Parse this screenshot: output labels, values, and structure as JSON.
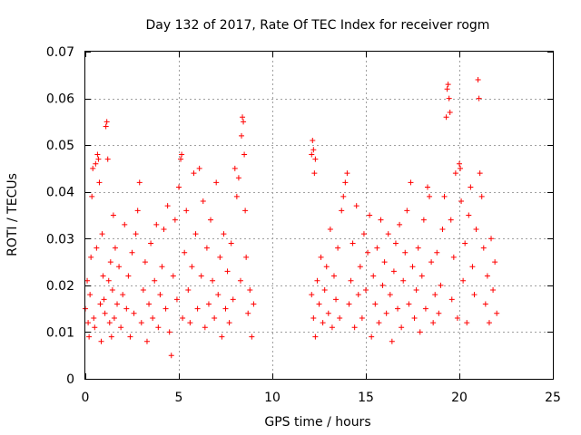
{
  "chart_data": {
    "type": "scatter",
    "title": "Day 132 of 2017, Rate Of TEC Index for receiver rogm",
    "xlabel": "GPS time / hours",
    "ylabel": "ROTI / TECUs",
    "xlim": [
      0,
      25
    ],
    "ylim": [
      0,
      0.07
    ],
    "xticks": [
      0,
      5,
      10,
      15,
      20,
      25
    ],
    "yticks": [
      0,
      0.01,
      0.02,
      0.03,
      0.04,
      0.05,
      0.06,
      0.07
    ],
    "xtick_labels": [
      "0",
      "5",
      "10",
      "15",
      "20",
      "25"
    ],
    "ytick_labels": [
      "0",
      "0.01",
      "0.02",
      "0.03",
      "0.04",
      "0.05",
      "0.06",
      "0.07"
    ],
    "grid": true,
    "marker": "+",
    "color": "#ff0000",
    "series": [
      {
        "points": [
          [
            0.0,
            0.015
          ],
          [
            0.1,
            0.021
          ],
          [
            0.15,
            0.012
          ],
          [
            0.2,
            0.009
          ],
          [
            0.25,
            0.018
          ],
          [
            0.3,
            0.026
          ],
          [
            0.35,
            0.039
          ],
          [
            0.4,
            0.045
          ],
          [
            0.45,
            0.013
          ],
          [
            0.5,
            0.011
          ],
          [
            0.55,
            0.046
          ],
          [
            0.6,
            0.028
          ],
          [
            0.65,
            0.048
          ],
          [
            0.7,
            0.047
          ],
          [
            0.75,
            0.042
          ],
          [
            0.8,
            0.016
          ],
          [
            0.85,
            0.008
          ],
          [
            0.9,
            0.031
          ],
          [
            0.95,
            0.022
          ],
          [
            1.0,
            0.017
          ],
          [
            1.05,
            0.014
          ],
          [
            1.1,
            0.054
          ],
          [
            1.15,
            0.055
          ],
          [
            1.2,
            0.047
          ],
          [
            1.25,
            0.021
          ],
          [
            1.3,
            0.012
          ],
          [
            1.35,
            0.025
          ],
          [
            1.4,
            0.009
          ],
          [
            1.45,
            0.019
          ],
          [
            1.5,
            0.035
          ],
          [
            1.55,
            0.013
          ],
          [
            1.6,
            0.028
          ],
          [
            1.7,
            0.016
          ],
          [
            1.8,
            0.024
          ],
          [
            1.9,
            0.011
          ],
          [
            2.0,
            0.018
          ],
          [
            2.1,
            0.033
          ],
          [
            2.2,
            0.015
          ],
          [
            2.3,
            0.022
          ],
          [
            2.4,
            0.009
          ],
          [
            2.5,
            0.027
          ],
          [
            2.6,
            0.014
          ],
          [
            2.7,
            0.031
          ],
          [
            2.8,
            0.036
          ],
          [
            2.9,
            0.042
          ],
          [
            3.0,
            0.012
          ],
          [
            3.1,
            0.019
          ],
          [
            3.2,
            0.025
          ],
          [
            3.3,
            0.008
          ],
          [
            3.4,
            0.016
          ],
          [
            3.5,
            0.029
          ],
          [
            3.6,
            0.013
          ],
          [
            3.7,
            0.021
          ],
          [
            3.8,
            0.033
          ],
          [
            3.9,
            0.011
          ],
          [
            4.0,
            0.018
          ],
          [
            4.1,
            0.024
          ],
          [
            4.2,
            0.032
          ],
          [
            4.3,
            0.015
          ],
          [
            4.4,
            0.037
          ],
          [
            4.5,
            0.01
          ],
          [
            4.6,
            0.005
          ],
          [
            4.7,
            0.022
          ],
          [
            4.8,
            0.034
          ],
          [
            4.9,
            0.017
          ],
          [
            5.0,
            0.041
          ],
          [
            5.1,
            0.047
          ],
          [
            5.15,
            0.048
          ],
          [
            5.2,
            0.013
          ],
          [
            5.3,
            0.027
          ],
          [
            5.4,
            0.036
          ],
          [
            5.5,
            0.019
          ],
          [
            5.6,
            0.012
          ],
          [
            5.7,
            0.024
          ],
          [
            5.8,
            0.044
          ],
          [
            5.9,
            0.031
          ],
          [
            6.0,
            0.015
          ],
          [
            6.1,
            0.045
          ],
          [
            6.2,
            0.022
          ],
          [
            6.3,
            0.038
          ],
          [
            6.4,
            0.011
          ],
          [
            6.5,
            0.028
          ],
          [
            6.6,
            0.016
          ],
          [
            6.7,
            0.034
          ],
          [
            6.8,
            0.021
          ],
          [
            6.9,
            0.013
          ],
          [
            7.0,
            0.042
          ],
          [
            7.1,
            0.018
          ],
          [
            7.2,
            0.026
          ],
          [
            7.3,
            0.009
          ],
          [
            7.4,
            0.031
          ],
          [
            7.5,
            0.015
          ],
          [
            7.6,
            0.023
          ],
          [
            7.7,
            0.012
          ],
          [
            7.8,
            0.029
          ],
          [
            7.9,
            0.017
          ],
          [
            8.0,
            0.045
          ],
          [
            8.1,
            0.039
          ],
          [
            8.2,
            0.043
          ],
          [
            8.3,
            0.021
          ],
          [
            8.35,
            0.052
          ],
          [
            8.4,
            0.056
          ],
          [
            8.45,
            0.055
          ],
          [
            8.5,
            0.048
          ],
          [
            8.55,
            0.036
          ],
          [
            8.6,
            0.026
          ],
          [
            8.7,
            0.014
          ],
          [
            8.8,
            0.019
          ],
          [
            8.9,
            0.009
          ],
          [
            9.0,
            0.016
          ],
          [
            12.1,
            0.048
          ],
          [
            12.15,
            0.051
          ],
          [
            12.2,
            0.049
          ],
          [
            12.25,
            0.044
          ],
          [
            12.3,
            0.047
          ],
          [
            12.1,
            0.018
          ],
          [
            12.2,
            0.013
          ],
          [
            12.3,
            0.009
          ],
          [
            12.4,
            0.021
          ],
          [
            12.5,
            0.016
          ],
          [
            12.6,
            0.026
          ],
          [
            12.7,
            0.012
          ],
          [
            12.8,
            0.019
          ],
          [
            12.9,
            0.024
          ],
          [
            13.0,
            0.014
          ],
          [
            13.1,
            0.032
          ],
          [
            13.2,
            0.011
          ],
          [
            13.3,
            0.022
          ],
          [
            13.4,
            0.017
          ],
          [
            13.5,
            0.028
          ],
          [
            13.6,
            0.013
          ],
          [
            13.7,
            0.036
          ],
          [
            13.8,
            0.039
          ],
          [
            13.9,
            0.042
          ],
          [
            14.0,
            0.044
          ],
          [
            14.1,
            0.016
          ],
          [
            14.2,
            0.021
          ],
          [
            14.3,
            0.029
          ],
          [
            14.4,
            0.011
          ],
          [
            14.5,
            0.037
          ],
          [
            14.6,
            0.018
          ],
          [
            14.7,
            0.024
          ],
          [
            14.8,
            0.013
          ],
          [
            14.9,
            0.031
          ],
          [
            15.0,
            0.019
          ],
          [
            15.1,
            0.027
          ],
          [
            15.2,
            0.035
          ],
          [
            15.3,
            0.009
          ],
          [
            15.4,
            0.022
          ],
          [
            15.5,
            0.016
          ],
          [
            15.6,
            0.028
          ],
          [
            15.7,
            0.012
          ],
          [
            15.8,
            0.034
          ],
          [
            15.9,
            0.02
          ],
          [
            16.0,
            0.025
          ],
          [
            16.1,
            0.014
          ],
          [
            16.2,
            0.031
          ],
          [
            16.3,
            0.018
          ],
          [
            16.4,
            0.008
          ],
          [
            16.5,
            0.023
          ],
          [
            16.6,
            0.029
          ],
          [
            16.7,
            0.015
          ],
          [
            16.8,
            0.033
          ],
          [
            16.9,
            0.011
          ],
          [
            17.0,
            0.021
          ],
          [
            17.1,
            0.027
          ],
          [
            17.2,
            0.036
          ],
          [
            17.3,
            0.016
          ],
          [
            17.4,
            0.042
          ],
          [
            17.5,
            0.024
          ],
          [
            17.6,
            0.013
          ],
          [
            17.7,
            0.019
          ],
          [
            17.8,
            0.028
          ],
          [
            17.9,
            0.01
          ],
          [
            18.0,
            0.022
          ],
          [
            18.1,
            0.034
          ],
          [
            18.2,
            0.015
          ],
          [
            18.3,
            0.041
          ],
          [
            18.4,
            0.039
          ],
          [
            18.5,
            0.025
          ],
          [
            18.6,
            0.012
          ],
          [
            18.7,
            0.018
          ],
          [
            18.8,
            0.027
          ],
          [
            18.9,
            0.014
          ],
          [
            19.0,
            0.02
          ],
          [
            19.1,
            0.032
          ],
          [
            19.2,
            0.039
          ],
          [
            19.3,
            0.056
          ],
          [
            19.35,
            0.062
          ],
          [
            19.4,
            0.063
          ],
          [
            19.45,
            0.06
          ],
          [
            19.5,
            0.057
          ],
          [
            19.55,
            0.034
          ],
          [
            19.6,
            0.017
          ],
          [
            19.7,
            0.026
          ],
          [
            19.8,
            0.044
          ],
          [
            19.9,
            0.013
          ],
          [
            20.0,
            0.046
          ],
          [
            20.05,
            0.045
          ],
          [
            20.1,
            0.038
          ],
          [
            20.2,
            0.021
          ],
          [
            20.3,
            0.029
          ],
          [
            20.4,
            0.012
          ],
          [
            20.5,
            0.035
          ],
          [
            20.6,
            0.041
          ],
          [
            20.7,
            0.024
          ],
          [
            20.8,
            0.018
          ],
          [
            20.9,
            0.032
          ],
          [
            21.0,
            0.064
          ],
          [
            21.05,
            0.06
          ],
          [
            21.1,
            0.044
          ],
          [
            21.2,
            0.039
          ],
          [
            21.3,
            0.028
          ],
          [
            21.4,
            0.016
          ],
          [
            21.5,
            0.022
          ],
          [
            21.6,
            0.012
          ],
          [
            21.7,
            0.03
          ],
          [
            21.8,
            0.019
          ],
          [
            21.9,
            0.025
          ],
          [
            22.0,
            0.014
          ]
        ]
      }
    ]
  }
}
